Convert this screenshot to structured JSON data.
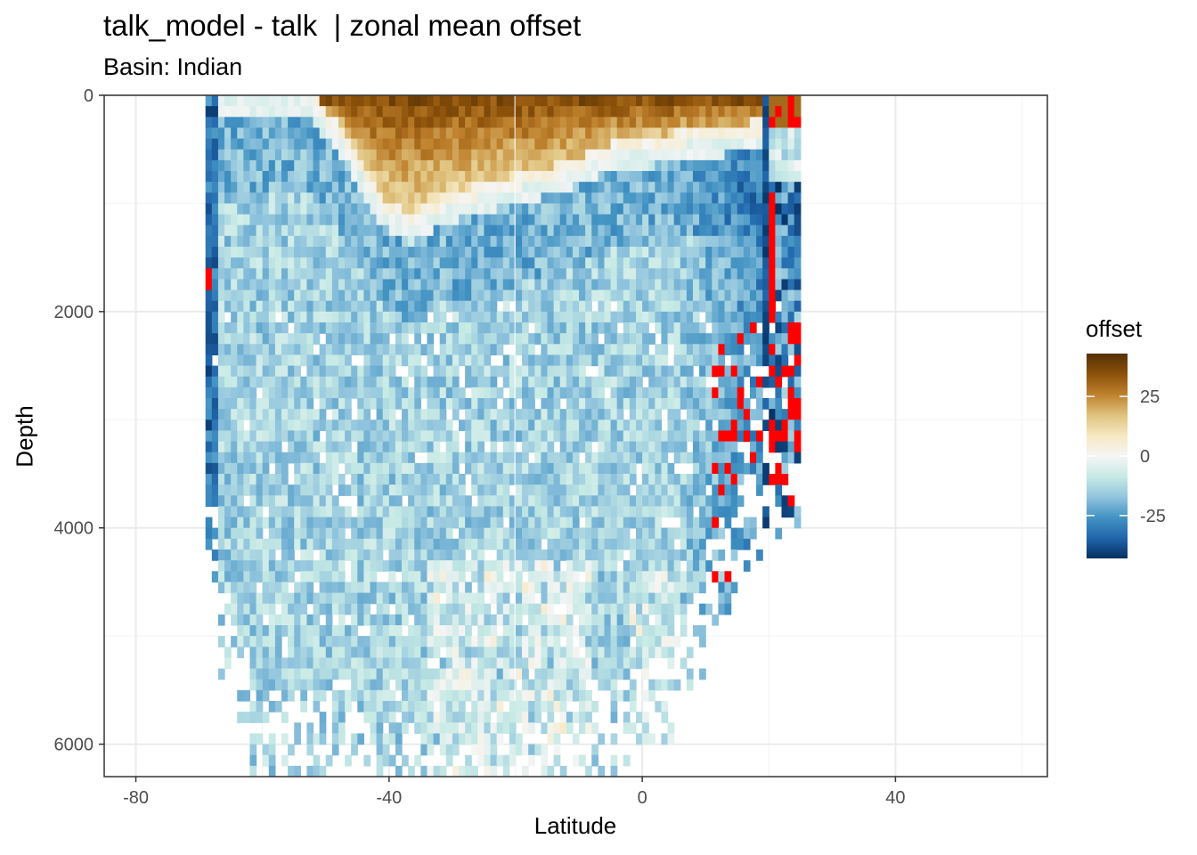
{
  "chart_data": {
    "type": "heatmap",
    "title": "talk_model - talk  | zonal mean offset",
    "subtitle": "Basin: Indian",
    "xlabel": "Latitude",
    "ylabel": "Depth",
    "xlim": [
      -85,
      64
    ],
    "ylim": [
      6300,
      0
    ],
    "x_ticks": [
      "-80",
      "-40",
      "0",
      "40"
    ],
    "x_tick_values": [
      -80,
      -40,
      0,
      40
    ],
    "y_ticks": [
      "0",
      "2000",
      "4000",
      "6000"
    ],
    "y_tick_values": [
      0,
      2000,
      4000,
      6000
    ],
    "grid": true,
    "legend": {
      "title": "offset",
      "position": "right",
      "ticks": [
        "25",
        "0",
        "-25"
      ],
      "tick_values": [
        25,
        0,
        -25
      ],
      "range": [
        -43,
        43
      ],
      "colors_high_to_low": [
        "#543005",
        "#8c510a",
        "#bf812d",
        "#dfc27d",
        "#f6e8c3",
        "#f5f5f5",
        "#c7eae5",
        "#92c5de",
        "#4393c3",
        "#2166ac",
        "#053061"
      ],
      "out_of_range_color": "#ff0000"
    },
    "data_extent": {
      "lat_min": -69,
      "lat_max": 25,
      "depth_bin": 100,
      "positive_offset_top": "0-1000 m between -53 and 20 latitude (up to ~+40)",
      "bulk_offset": "about -15 at mid depths",
      "northern_edge": "strong negative and out-of-range values near 15-25 latitude",
      "southern_edge": "strong negative values near -69 latitude"
    }
  }
}
